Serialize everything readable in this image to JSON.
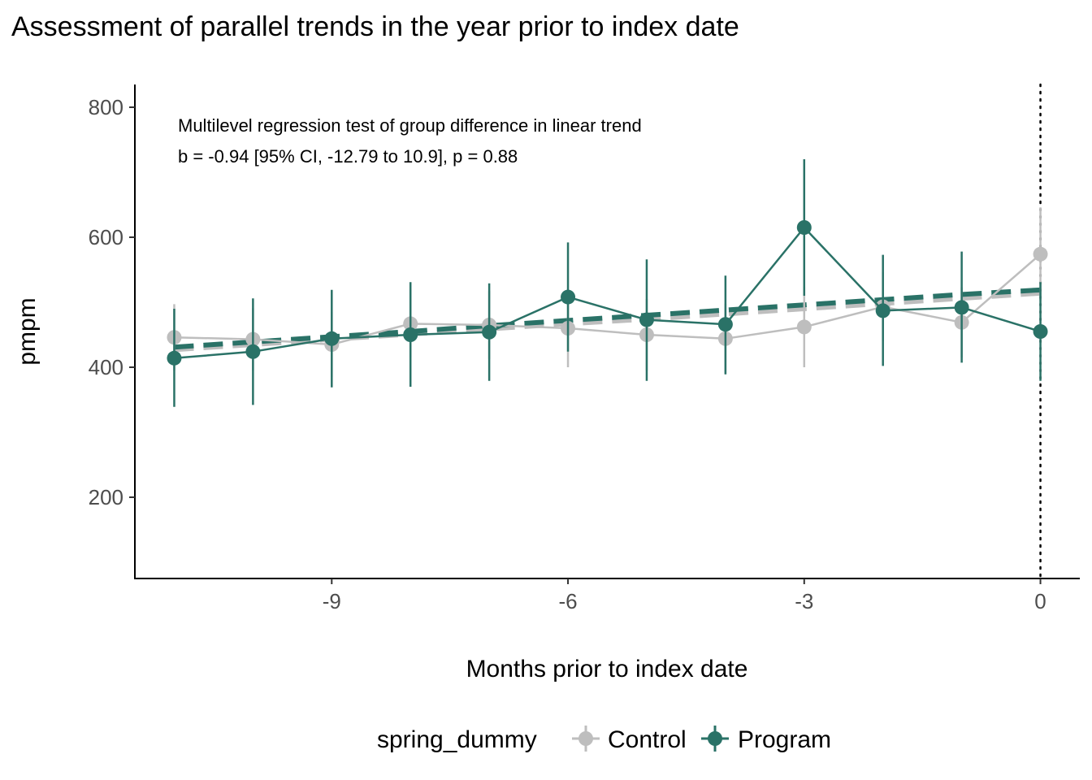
{
  "chart_data": {
    "type": "line",
    "title": "Assessment of parallel trends in the year prior to index date",
    "xlabel": "Months prior to index date",
    "ylabel": "pmpm",
    "xlim": [
      -11.5,
      0.5
    ],
    "ylim": [
      75,
      835
    ],
    "x_ticks": [
      -9,
      -6,
      -3,
      0
    ],
    "x_tick_labels": [
      "-9",
      "-6",
      "-3",
      "0"
    ],
    "y_ticks": [
      200,
      400,
      600,
      800
    ],
    "y_tick_labels": [
      "200",
      "400",
      "600",
      "800"
    ],
    "grid": false,
    "reference_line": {
      "x": 0,
      "style": "dotted"
    },
    "annotation": {
      "line1": "Multilevel regression test of group difference in linear trend",
      "line2": "b = -0.94 [95% CI, -12.79 to 10.9], p = 0.88"
    },
    "legend": {
      "title": "spring_dummy",
      "position": "bottom",
      "entries": [
        "Control",
        "Program"
      ]
    },
    "x": [
      -11,
      -10,
      -9,
      -8,
      -7,
      -6,
      -5,
      -4,
      -3,
      -2,
      -1,
      0
    ],
    "series": [
      {
        "name": "Control",
        "color": "#bebebe",
        "values": [
          446,
          443,
          435,
          467,
          465,
          460,
          450,
          444,
          462,
          493,
          469,
          574
        ],
        "lower": [
          395,
          395,
          385,
          415,
          413,
          400,
          395,
          390,
          400,
          440,
          415,
          503
        ],
        "upper": [
          497,
          491,
          485,
          519,
          517,
          520,
          505,
          498,
          524,
          546,
          523,
          646
        ],
        "trend": [
          427,
          435,
          443,
          451,
          459,
          467,
          474,
          482,
          490,
          498,
          506,
          514
        ]
      },
      {
        "name": "Program",
        "color": "#2a7267",
        "values": [
          414,
          424,
          444,
          450,
          454,
          508,
          473,
          466,
          615,
          487,
          492,
          455
        ],
        "lower": [
          339,
          342,
          369,
          370,
          379,
          424,
          379,
          389,
          510,
          402,
          407,
          379
        ],
        "upper": [
          490,
          506,
          519,
          531,
          529,
          592,
          566,
          541,
          720,
          573,
          578,
          531
        ],
        "trend": [
          431,
          439,
          447,
          455,
          464,
          472,
          480,
          488,
          496,
          504,
          512,
          519
        ]
      }
    ]
  }
}
